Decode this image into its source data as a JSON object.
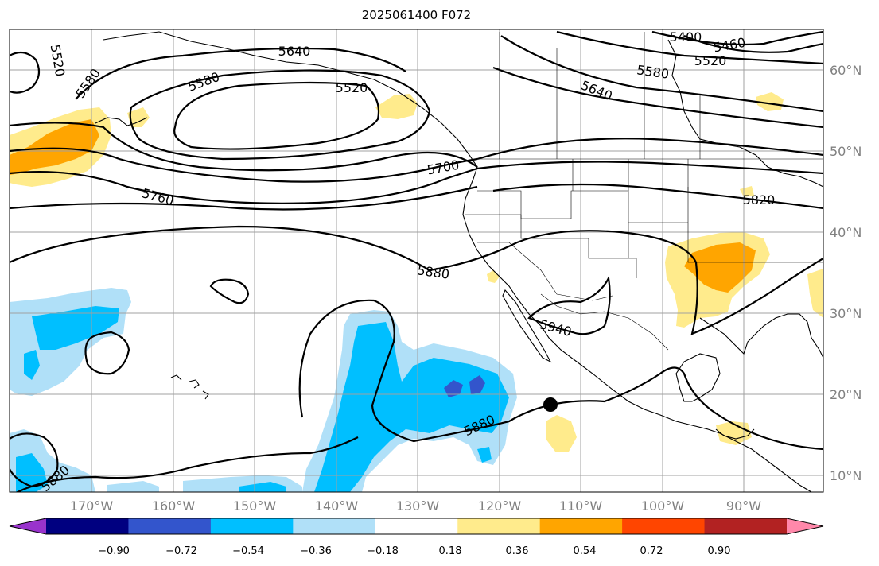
{
  "title": "2025061400 F072",
  "map": {
    "lon_ticks": [
      "170°W",
      "160°W",
      "150°W",
      "140°W",
      "130°W",
      "120°W",
      "110°W",
      "100°W",
      "90°W"
    ],
    "lat_ticks": [
      "60°N",
      "50°N",
      "40°N",
      "30°N",
      "20°N",
      "10°N"
    ],
    "contour_labels": [
      "5520",
      "5580",
      "5640",
      "5520",
      "5580",
      "5400",
      "5460",
      "5520",
      "5580",
      "5640",
      "5700",
      "5760",
      "5820",
      "5880",
      "5940",
      "5880",
      "5880"
    ],
    "marker": "hurricane-center-dot"
  },
  "colorbar": {
    "tick_labels": [
      "−0.90",
      "−0.72",
      "−0.54",
      "−0.36",
      "−0.18",
      "0.18",
      "0.36",
      "0.54",
      "0.72",
      "0.90"
    ],
    "colors": [
      "#9933cc",
      "#000080",
      "#3355cc",
      "#00bfff",
      "#b0e0f8",
      "#ffffff",
      "#ffeb8c",
      "#ffa500",
      "#ff4500",
      "#b22222",
      "#ff88aa"
    ]
  }
}
